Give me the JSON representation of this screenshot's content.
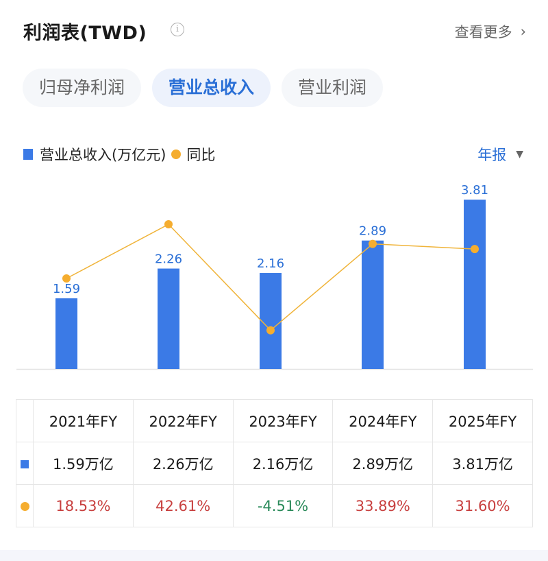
{
  "header": {
    "title": "利润表(TWD)",
    "info_icon": "info-icon",
    "more_label": "查看更多",
    "more_icon": "chevron-right-icon"
  },
  "tabs": [
    {
      "label": "归母净利润",
      "active": false
    },
    {
      "label": "营业总收入",
      "active": true
    },
    {
      "label": "营业利润",
      "active": false
    }
  ],
  "legend": {
    "bar_label": "营业总收入(万亿元)",
    "line_label": "同比"
  },
  "period": {
    "label": "年报",
    "icon": "triangle-down-icon"
  },
  "colors": {
    "bar": "#3b7ae6",
    "line": "#f5ad2f",
    "positive": "#c8403f",
    "negative": "#2a8a5a",
    "accent": "#2a6fd6"
  },
  "chart_data": {
    "type": "bar+line",
    "categories": [
      "2021年FY",
      "2022年FY",
      "2023年FY",
      "2024年FY",
      "2025年FY"
    ],
    "series": [
      {
        "name": "营业总收入(万亿元)",
        "type": "bar",
        "values": [
          1.59,
          2.26,
          2.16,
          2.89,
          3.81
        ],
        "labels": [
          "1.59",
          "2.26",
          "2.16",
          "2.89",
          "3.81"
        ]
      },
      {
        "name": "同比",
        "type": "line",
        "values": [
          18.53,
          42.61,
          -4.51,
          33.89,
          31.6
        ]
      }
    ]
  },
  "table": {
    "headers": [
      "2021年FY",
      "2022年FY",
      "2023年FY",
      "2024年FY",
      "2025年FY"
    ],
    "revenue": [
      "1.59万亿",
      "2.26万亿",
      "2.16万亿",
      "2.89万亿",
      "3.81万亿"
    ],
    "yoy": [
      "18.53%",
      "42.61%",
      "-4.51%",
      "33.89%",
      "31.60%"
    ]
  }
}
